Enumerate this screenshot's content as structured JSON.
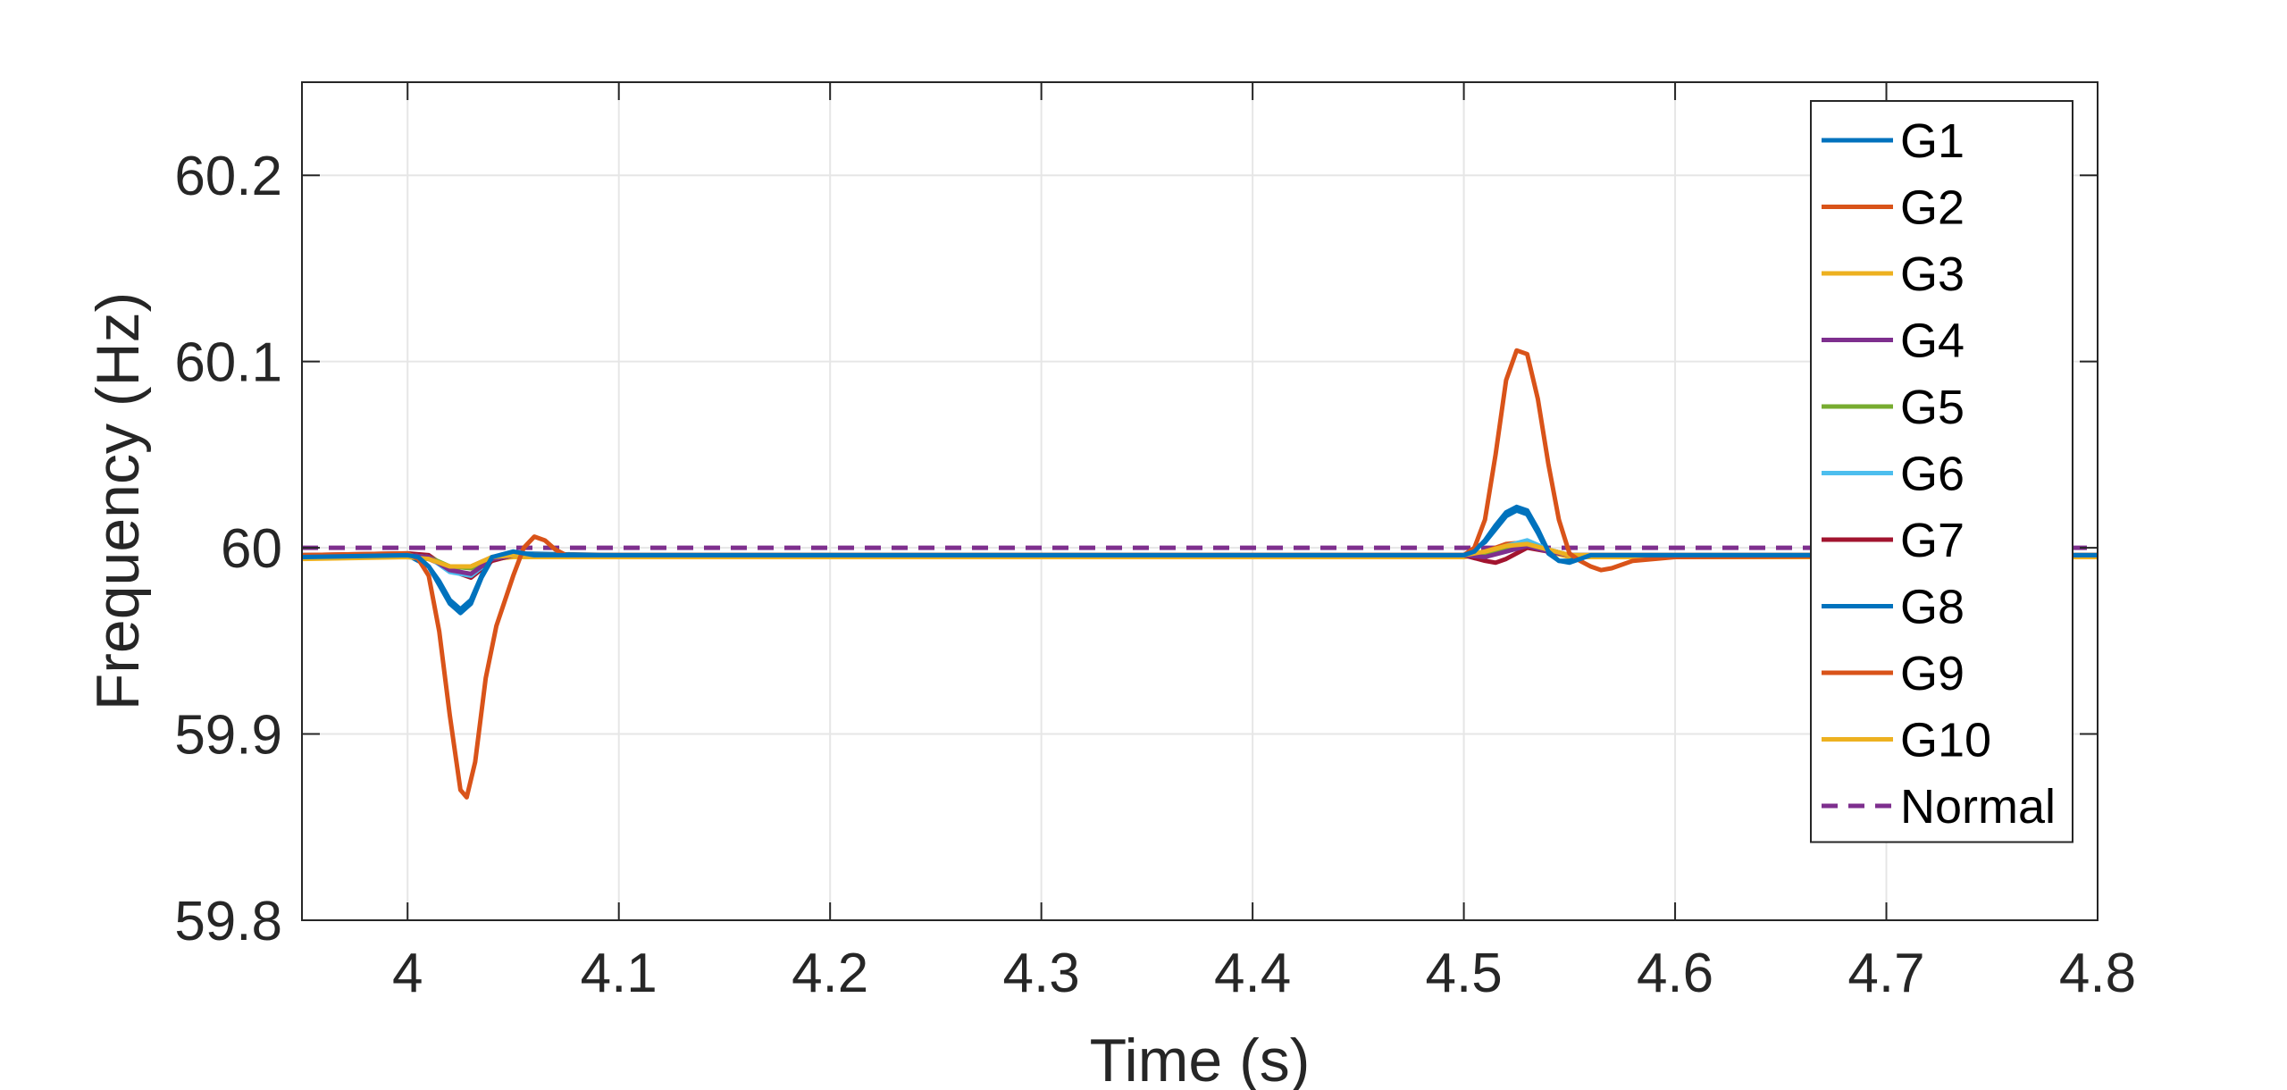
{
  "chart_data": {
    "type": "line",
    "title": "",
    "xlabel": "Time (s)",
    "ylabel": "Frequency (Hz)",
    "xlim": [
      3.95,
      4.8
    ],
    "ylim": [
      59.8,
      60.25
    ],
    "xticks": [
      4,
      4.1,
      4.2,
      4.3,
      4.4,
      4.5,
      4.6,
      4.7,
      4.8
    ],
    "xtick_labels": [
      "4",
      "4.1",
      "4.2",
      "4.3",
      "4.4",
      "4.5",
      "4.6",
      "4.7",
      "4.8"
    ],
    "yticks": [
      59.8,
      59.9,
      60,
      60.1,
      60.2
    ],
    "ytick_labels": [
      "59.8",
      "59.9",
      "60",
      "60.1",
      "60.2"
    ],
    "grid": true,
    "legend_position": "top-right",
    "series": [
      {
        "name": "G1",
        "color": "#0072BD",
        "dash": "solid",
        "x": [
          3.95,
          4.0,
          4.005,
          4.01,
          4.015,
          4.02,
          4.025,
          4.03,
          4.035,
          4.04,
          4.05,
          4.06,
          4.08,
          4.5,
          4.505,
          4.51,
          4.515,
          4.52,
          4.525,
          4.53,
          4.535,
          4.54,
          4.545,
          4.55,
          4.56,
          4.57,
          4.6,
          4.8
        ],
        "y": [
          59.995,
          59.996,
          59.995,
          59.99,
          59.982,
          59.972,
          59.967,
          59.972,
          59.985,
          59.995,
          59.998,
          59.996,
          59.996,
          59.996,
          59.998,
          60.004,
          60.012,
          60.019,
          60.022,
          60.02,
          60.01,
          59.998,
          59.993,
          59.992,
          59.996,
          59.996,
          59.996,
          59.996
        ]
      },
      {
        "name": "G2",
        "color": "#D95319",
        "dash": "solid",
        "x": [
          3.95,
          4.0,
          4.005,
          4.01,
          4.015,
          4.02,
          4.025,
          4.028,
          4.032,
          4.037,
          4.042,
          4.05,
          4.055,
          4.06,
          4.065,
          4.07,
          4.075,
          4.08,
          4.1,
          4.5,
          4.505,
          4.51,
          4.515,
          4.52,
          4.525,
          4.53,
          4.535,
          4.54,
          4.545,
          4.55,
          4.555,
          4.56,
          4.565,
          4.57,
          4.58,
          4.6,
          4.8
        ],
        "y": [
          59.996,
          59.997,
          59.994,
          59.985,
          59.955,
          59.91,
          59.87,
          59.866,
          59.885,
          59.93,
          59.958,
          59.985,
          60.0,
          60.006,
          60.004,
          59.999,
          59.996,
          59.996,
          59.996,
          59.996,
          60.0,
          60.015,
          60.05,
          60.09,
          60.106,
          60.104,
          60.08,
          60.045,
          60.015,
          59.997,
          59.993,
          59.99,
          59.988,
          59.989,
          59.993,
          59.995,
          59.996
        ]
      },
      {
        "name": "G3",
        "color": "#EDB120",
        "dash": "solid",
        "x": [
          3.95,
          4.0,
          4.01,
          4.02,
          4.03,
          4.04,
          4.05,
          4.1,
          4.5,
          4.51,
          4.52,
          4.53,
          4.54,
          4.55,
          4.6,
          4.8
        ],
        "y": [
          59.995,
          59.995,
          59.994,
          59.99,
          59.99,
          59.995,
          59.996,
          59.996,
          59.996,
          59.998,
          60.001,
          60.002,
          59.999,
          59.996,
          59.996,
          59.996
        ]
      },
      {
        "name": "G4",
        "color": "#7E2F8E",
        "dash": "solid",
        "x": [
          3.95,
          4.0,
          4.01,
          4.02,
          4.03,
          4.04,
          4.05,
          4.1,
          4.5,
          4.51,
          4.52,
          4.53,
          4.54,
          4.55,
          4.6,
          4.8
        ],
        "y": [
          59.996,
          59.996,
          59.995,
          59.988,
          59.986,
          59.994,
          59.996,
          59.996,
          59.996,
          59.995,
          59.998,
          60.001,
          59.998,
          59.996,
          59.996,
          59.996
        ]
      },
      {
        "name": "G5",
        "color": "#77AC30",
        "dash": "solid",
        "x": [
          3.95,
          4.0,
          4.01,
          4.02,
          4.03,
          4.04,
          4.05,
          4.1,
          4.5,
          4.51,
          4.52,
          4.53,
          4.54,
          4.55,
          4.6,
          4.8
        ],
        "y": [
          59.996,
          59.996,
          59.995,
          59.99,
          59.989,
          59.995,
          59.996,
          59.996,
          59.996,
          59.996,
          59.999,
          60.002,
          59.999,
          59.996,
          59.996,
          59.996
        ]
      },
      {
        "name": "G6",
        "color": "#4DBEEE",
        "dash": "solid",
        "x": [
          3.95,
          4.0,
          4.01,
          4.02,
          4.03,
          4.04,
          4.05,
          4.1,
          4.5,
          4.51,
          4.52,
          4.53,
          4.54,
          4.55,
          4.6,
          4.8
        ],
        "y": [
          59.996,
          59.996,
          59.995,
          59.987,
          59.985,
          59.994,
          59.996,
          59.996,
          59.996,
          59.997,
          60.001,
          60.004,
          59.999,
          59.996,
          59.996,
          59.996
        ]
      },
      {
        "name": "G7",
        "color": "#A2142F",
        "dash": "solid",
        "x": [
          3.95,
          4.0,
          4.01,
          4.02,
          4.03,
          4.04,
          4.05,
          4.1,
          4.5,
          4.51,
          4.515,
          4.52,
          4.53,
          4.54,
          4.55,
          4.6,
          4.8
        ],
        "y": [
          59.996,
          59.997,
          59.996,
          59.988,
          59.984,
          59.993,
          59.996,
          59.996,
          59.996,
          59.993,
          59.992,
          59.994,
          60.0,
          59.998,
          59.996,
          59.996,
          59.996
        ]
      },
      {
        "name": "G8",
        "color": "#0072BD",
        "dash": "solid",
        "x": [
          3.95,
          4.0,
          4.01,
          4.015,
          4.02,
          4.025,
          4.03,
          4.035,
          4.04,
          4.05,
          4.1,
          4.5,
          4.51,
          4.515,
          4.52,
          4.525,
          4.53,
          4.535,
          4.54,
          4.545,
          4.55,
          4.56,
          4.6,
          4.8
        ],
        "y": [
          59.995,
          59.996,
          59.99,
          59.98,
          59.97,
          59.965,
          59.97,
          59.984,
          59.994,
          59.997,
          59.996,
          59.996,
          60.003,
          60.01,
          60.017,
          60.02,
          60.018,
          60.008,
          59.997,
          59.993,
          59.993,
          59.996,
          59.996,
          59.996
        ]
      },
      {
        "name": "G9",
        "color": "#D95319",
        "dash": "solid",
        "x": [
          3.95,
          4.0,
          4.01,
          4.02,
          4.03,
          4.04,
          4.05,
          4.1,
          4.5,
          4.51,
          4.52,
          4.53,
          4.54,
          4.55,
          4.6,
          4.8
        ],
        "y": [
          59.995,
          59.996,
          59.994,
          59.989,
          59.99,
          59.995,
          59.996,
          59.996,
          59.996,
          59.998,
          60.002,
          60.003,
          59.999,
          59.996,
          59.996,
          59.996
        ]
      },
      {
        "name": "G10",
        "color": "#EDB120",
        "dash": "solid",
        "x": [
          3.95,
          4.0,
          4.01,
          4.02,
          4.03,
          4.04,
          4.05,
          4.1,
          4.5,
          4.51,
          4.52,
          4.53,
          4.54,
          4.55,
          4.6,
          4.8
        ],
        "y": [
          59.994,
          59.995,
          59.994,
          59.99,
          59.99,
          59.994,
          59.995,
          59.995,
          59.995,
          59.997,
          60.0,
          60.001,
          59.998,
          59.995,
          59.995,
          59.995
        ]
      },
      {
        "name": "Normal",
        "color": "#7E2F8E",
        "dash": "dashed",
        "x": [
          3.95,
          4.8
        ],
        "y": [
          60.0,
          60.0
        ]
      }
    ]
  }
}
